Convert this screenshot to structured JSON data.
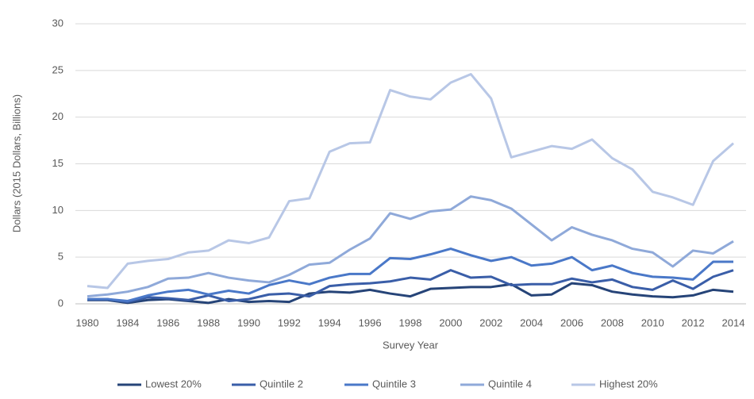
{
  "chart_data": {
    "type": "line",
    "y_label": "Dollars (2015 Dollars, Billions)",
    "x_label": "Survey Year",
    "categories": [
      "1980",
      null,
      "1984",
      null,
      "1986",
      null,
      "1988",
      null,
      "1990",
      null,
      "1992",
      null,
      "1994",
      null,
      "1996",
      null,
      "1998",
      null,
      "2000",
      null,
      "2002",
      null,
      "2004",
      null,
      "2006",
      null,
      "2008",
      null,
      "2010",
      null,
      "2012",
      null,
      "2014"
    ],
    "ylim": [
      0,
      30
    ],
    "yticks": [
      0,
      5,
      10,
      15,
      20,
      25,
      30
    ],
    "grid": true,
    "legend": "bottom",
    "series": [
      {
        "name": "Lowest 20%",
        "color": "#264478",
        "values": [
          0.4,
          0.4,
          0.1,
          0.4,
          0.5,
          0.3,
          0.1,
          0.5,
          0.2,
          0.3,
          0.2,
          1.1,
          1.3,
          1.2,
          1.5,
          1.1,
          0.8,
          1.6,
          1.7,
          1.8,
          1.8,
          2.1,
          0.9,
          1.0,
          2.2,
          2.0,
          1.3,
          1.0,
          0.8,
          0.7,
          0.9,
          1.5,
          1.3
        ]
      },
      {
        "name": "Quintile 2",
        "color": "#3a5ea8",
        "values": [
          0.5,
          0.5,
          0.2,
          0.7,
          0.6,
          0.4,
          0.9,
          0.3,
          0.5,
          1.0,
          1.1,
          0.8,
          1.9,
          2.1,
          2.2,
          2.4,
          2.8,
          2.6,
          3.6,
          2.8,
          2.9,
          2.0,
          2.1,
          2.1,
          2.7,
          2.3,
          2.6,
          1.8,
          1.5,
          2.5,
          1.6,
          2.9,
          3.6
        ]
      },
      {
        "name": "Quintile 3",
        "color": "#4a78c8",
        "values": [
          0.5,
          0.5,
          0.3,
          0.9,
          1.3,
          1.5,
          1.0,
          1.4,
          1.1,
          2.0,
          2.5,
          2.1,
          2.8,
          3.2,
          3.2,
          4.9,
          4.8,
          5.3,
          5.9,
          5.2,
          4.6,
          5.0,
          4.1,
          4.3,
          5.0,
          3.6,
          4.1,
          3.3,
          2.9,
          2.8,
          2.6,
          4.5,
          4.5
        ]
      },
      {
        "name": "Quintile 4",
        "color": "#8fa9d9",
        "values": [
          0.8,
          1.0,
          1.3,
          1.8,
          2.7,
          2.8,
          3.3,
          2.8,
          2.5,
          2.3,
          3.1,
          4.2,
          4.4,
          5.8,
          7.0,
          9.7,
          9.1,
          9.9,
          10.1,
          11.5,
          11.1,
          10.2,
          8.5,
          6.8,
          8.2,
          7.4,
          6.8,
          5.9,
          5.5,
          4.0,
          5.7,
          5.4,
          6.7
        ]
      },
      {
        "name": "Highest 20%",
        "color": "#b8c7e6",
        "values": [
          1.9,
          1.7,
          4.3,
          4.6,
          4.8,
          5.5,
          5.7,
          6.8,
          6.5,
          7.1,
          11.0,
          11.3,
          16.3,
          17.2,
          17.3,
          22.9,
          22.2,
          21.9,
          23.7,
          24.6,
          22.0,
          15.7,
          16.3,
          16.9,
          16.6,
          17.6,
          15.6,
          14.4,
          12.0,
          11.4,
          10.6,
          15.3,
          17.2
        ]
      }
    ]
  }
}
